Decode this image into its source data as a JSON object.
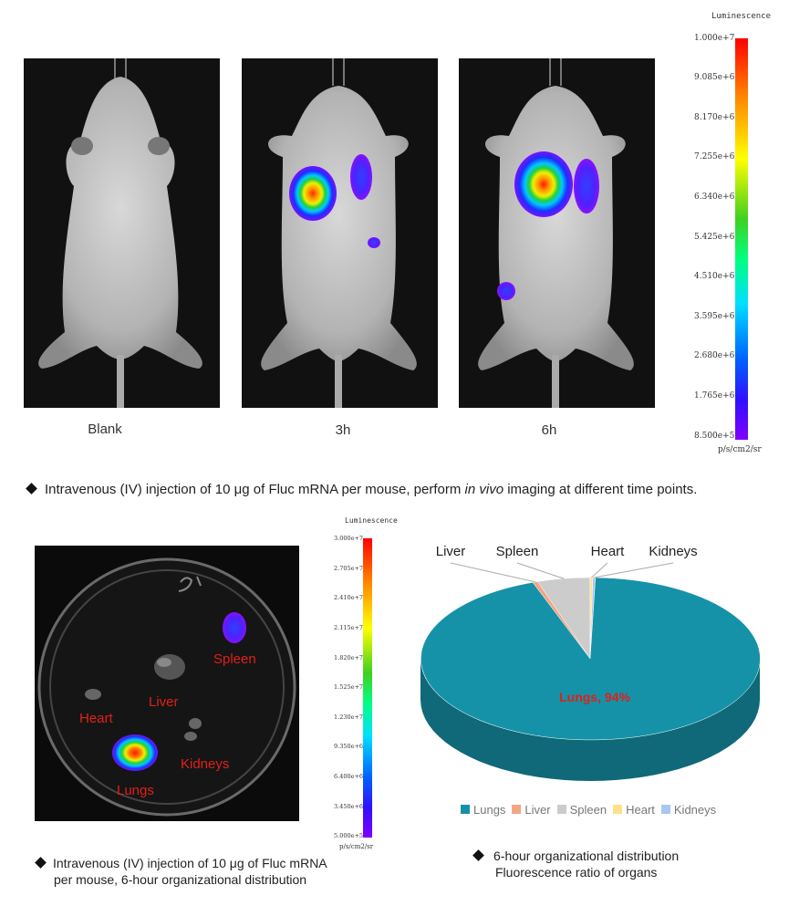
{
  "top": {
    "mice": [
      {
        "label": "Blank"
      },
      {
        "label": "3h"
      },
      {
        "label": "6h"
      }
    ],
    "colorbar": {
      "title": "Luminescence",
      "ticks": [
        "1.000e+7",
        "9.085e+6",
        "8.170e+6",
        "7.255e+6",
        "6.340e+6",
        "5.425e+6",
        "4.510e+6",
        "3.595e+6",
        "2.680e+6",
        "1.765e+6",
        "8.500e+5"
      ],
      "unit": "p/s/cm2/sr"
    },
    "caption_pre": "Intravenous (IV) injection of 10 μg of Fluc mRNA per mouse, perform ",
    "caption_em": "in vivo",
    "caption_post": " imaging at different time points."
  },
  "bottom_left": {
    "organs": {
      "spleen": "Spleen",
      "liver": "Liver",
      "heart": "Heart",
      "kidneys": "Kidneys",
      "lungs": "Lungs"
    },
    "colorbar": {
      "title": "Luminescence",
      "ticks": [
        "3.000e+7",
        "2.705e+7",
        "2.410e+7",
        "2.115e+7",
        "1.820e+7",
        "1.525e+7",
        "1.230e+7",
        "9.350e+6",
        "6.400e+6",
        "3.450e+6",
        "5.000e+5"
      ],
      "unit": "p/s/cm2/sr"
    },
    "caption_line1": "Intravenous (IV) injection of 10 μg of Fluc mRNA",
    "caption_line2": "per mouse,  6-hour organizational distribution"
  },
  "bottom_right": {
    "caption_line1": "6-hour organizational distribution",
    "caption_line2": "Fluorescence ratio of organs"
  },
  "chart_data": {
    "type": "pie",
    "title": "",
    "categories": [
      "Lungs",
      "Liver",
      "Spleen",
      "Heart",
      "Kidneys"
    ],
    "values": [
      94,
      0.5,
      5,
      0.25,
      0.25
    ],
    "colors": [
      "#1592a8",
      "#f4a582",
      "#cccccc",
      "#ffe08a",
      "#a9c8f0"
    ],
    "data_labels": [
      {
        "category": "Lungs",
        "text": "Lungs, 94%"
      }
    ],
    "legend_position": "bottom",
    "callout_labels": [
      "Liver",
      "Spleen",
      "Heart",
      "Kidneys"
    ]
  }
}
